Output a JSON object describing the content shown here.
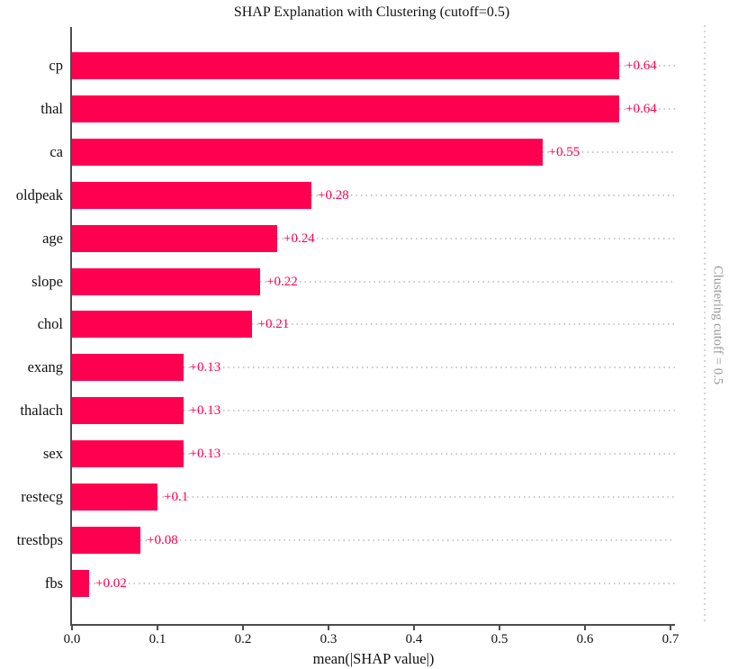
{
  "chart_data": {
    "type": "bar",
    "orientation": "horizontal",
    "title": "SHAP Explanation with Clustering (cutoff=0.5)",
    "xlabel": "mean(|SHAP value|)",
    "categories": [
      "cp",
      "thal",
      "ca",
      "oldpeak",
      "age",
      "slope",
      "chol",
      "exang",
      "thalach",
      "sex",
      "restecg",
      "trestbps",
      "fbs"
    ],
    "values": [
      0.64,
      0.64,
      0.55,
      0.28,
      0.24,
      0.22,
      0.21,
      0.13,
      0.13,
      0.13,
      0.1,
      0.08,
      0.02
    ],
    "value_labels": [
      "+0.64",
      "+0.64",
      "+0.55",
      "+0.28",
      "+0.24",
      "+0.22",
      "+0.21",
      "+0.13",
      "+0.13",
      "+0.13",
      "+0.1",
      "+0.08",
      "+0.02"
    ],
    "xlim": [
      0,
      0.7
    ],
    "xticks": [
      "0.0",
      "0.1",
      "0.2",
      "0.3",
      "0.4",
      "0.5",
      "0.6",
      "0.7"
    ],
    "annotation": "Clustering cutoff = 0.5",
    "bar_color": "#ff0051",
    "value_label_color": "#ff0051",
    "leader_line_color": "#c9c9c9",
    "cutoff_line_color": "#d6d6d6",
    "annotation_color": "#999999",
    "legend": "none",
    "grid": "dotted leader lines per bar"
  }
}
